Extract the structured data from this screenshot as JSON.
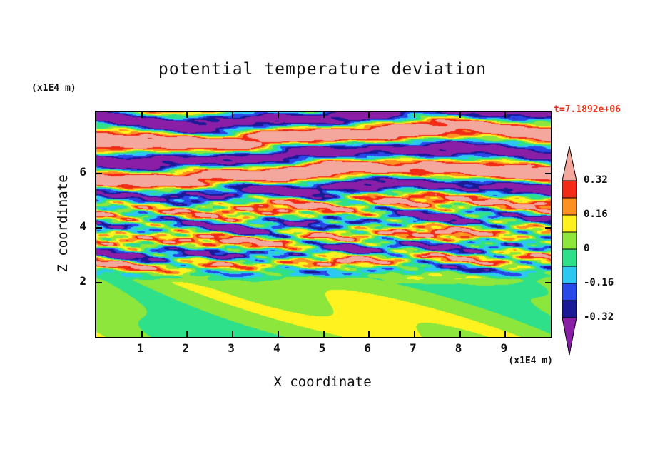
{
  "title": "potential temperature deviation",
  "timestamp": "t=7.1892e+06",
  "axes": {
    "x_label": "X coordinate",
    "x_unit": "(x1E4 m)",
    "y_label": "Z coordinate",
    "y_unit": "(x1E4 m)",
    "x_ticks": [
      "1",
      "2",
      "3",
      "4",
      "5",
      "6",
      "7",
      "8",
      "9"
    ],
    "y_ticks": [
      "2",
      "4",
      "6"
    ]
  },
  "chart_data": {
    "type": "heatmap",
    "title": "potential temperature deviation",
    "xlabel": "X coordinate (x1E4 m)",
    "ylabel": "Z coordinate (x1E4 m)",
    "time_label": "t=7.1892e+06",
    "x_range": [
      0,
      10
    ],
    "z_range": [
      0,
      8.25
    ],
    "x_tick_values": [
      1,
      2,
      3,
      4,
      5,
      6,
      7,
      8,
      9
    ],
    "z_tick_values": [
      2,
      4,
      6
    ],
    "grid": false,
    "legend_position": "right",
    "colorbar": {
      "orientation": "vertical",
      "tick_labels": [
        "0.32",
        "0.16",
        "0",
        "-0.16",
        "-0.32"
      ],
      "tick_values": [
        0.32,
        0.16,
        0,
        -0.16,
        -0.32
      ],
      "band_boundaries": [
        0.32,
        0.24,
        0.16,
        0.08,
        0,
        -0.08,
        -0.16,
        -0.24,
        -0.32
      ],
      "band_colors": [
        "#f22b16",
        "#ff9122",
        "#fff21e",
        "#8ce63c",
        "#2ee08a",
        "#2cc8f2",
        "#2948e8",
        "#1a1a96"
      ],
      "over_color": "#f4a79c",
      "under_color": "#8a1ea6"
    },
    "field_description": "Stratified turbulent potential temperature deviation field: near-zero (green) region below z~2 with weak swirls; strongly layered alternating positive (salmon/red/orange) and negative (purple/navy/blue) wavy horizontal bands above, with fine turbulent streaks between z~2 and z~5."
  },
  "colors": {
    "timestamp_text": "#e8321e",
    "frame": "#000000",
    "text": "#111111",
    "background": "#ffffff"
  }
}
